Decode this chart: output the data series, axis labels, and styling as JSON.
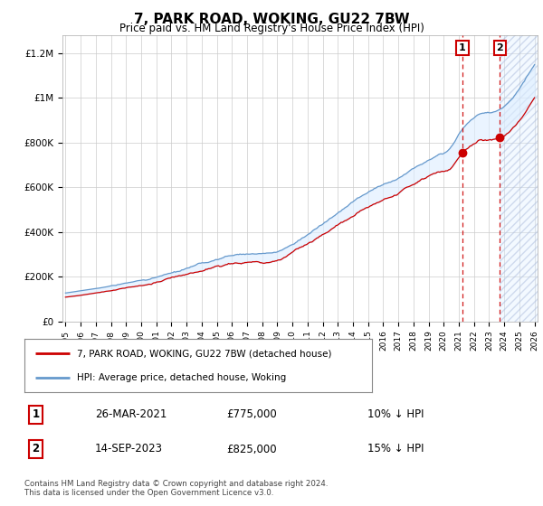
{
  "title": "7, PARK ROAD, WOKING, GU22 7BW",
  "subtitle": "Price paid vs. HM Land Registry's House Price Index (HPI)",
  "ylabel_ticks": [
    "£0",
    "£200K",
    "£400K",
    "£600K",
    "£800K",
    "£1M",
    "£1.2M"
  ],
  "ytick_values": [
    0,
    200000,
    400000,
    600000,
    800000,
    1000000,
    1200000
  ],
  "ylim": [
    0,
    1280000
  ],
  "xlim_start": 1994.8,
  "xlim_end": 2026.2,
  "hpi_color": "#6699cc",
  "price_color": "#cc0000",
  "fill_color": "#ddeeff",
  "transaction1_price": 775000,
  "transaction1_pct": "10% ↓ HPI",
  "transaction1_date": "26-MAR-2021",
  "transaction2_price": 825000,
  "transaction2_pct": "15% ↓ HPI",
  "transaction2_date": "14-SEP-2023",
  "transaction1_x": 2021.23,
  "transaction2_x": 2023.71,
  "legend_label1": "7, PARK ROAD, WOKING, GU22 7BW (detached house)",
  "legend_label2": "HPI: Average price, detached house, Woking",
  "footnote": "Contains HM Land Registry data © Crown copyright and database right 2024.\nThis data is licensed under the Open Government Licence v3.0.",
  "background_color": "#ffffff",
  "grid_color": "#cccccc",
  "noise_seed": 17
}
